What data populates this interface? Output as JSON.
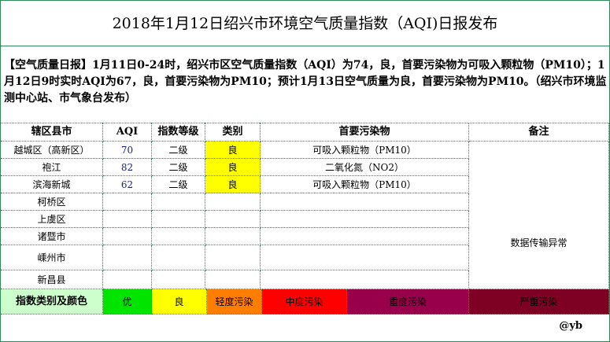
{
  "title": "2018年1月12日绍兴市环境空气质量指数（AQI)日报发布",
  "notice": "【空气质量日报】1月11日0-24时，绍兴市区空气质量指数（AQI）为74，良，首要污染物为可吸入颗粒物（PM10）；1月12日9时实时AQI为67，良，首要污染物为PM10；预计1月13日空气质量为良，首要污染物为PM10。（绍兴市环境监测中心站、市气象台发布）",
  "headers": [
    "辖区县市",
    "AQI",
    "指数等级",
    "类别",
    "首要污染物",
    "备注"
  ],
  "rows": [
    {
      "area": "越城区（高新区）",
      "aqi": "70",
      "level": "二级",
      "category": "良",
      "pollutant": "可吸入颗粒物（PM10）"
    },
    {
      "area": "袍江",
      "aqi": "82",
      "level": "二级",
      "category": "良",
      "pollutant": "二氧化氮（NO2）"
    },
    {
      "area": "滨海新城",
      "aqi": "62",
      "level": "二级",
      "category": "良",
      "pollutant": "可吸入颗粒物（PM10）"
    },
    {
      "area": "柯桥区"
    },
    {
      "area": "上虞区"
    },
    {
      "area": "诸暨市"
    },
    {
      "area": "嵊州市"
    },
    {
      "area": "新昌县"
    }
  ],
  "remark": "数据传输异常",
  "legend": {
    "label": "指数类别及颜色",
    "items": [
      {
        "label": "优",
        "color": "#00e400"
      },
      {
        "label": "良",
        "color": "#ffff00"
      },
      {
        "label": "轻度污染",
        "color": "#ff7e00"
      },
      {
        "label": "中度污染",
        "color": "#ff0000"
      },
      {
        "label": "重度污染",
        "color": "#99004c"
      },
      {
        "label": "严重污染",
        "color": "#7e0023"
      }
    ]
  },
  "footer": "@yb"
}
